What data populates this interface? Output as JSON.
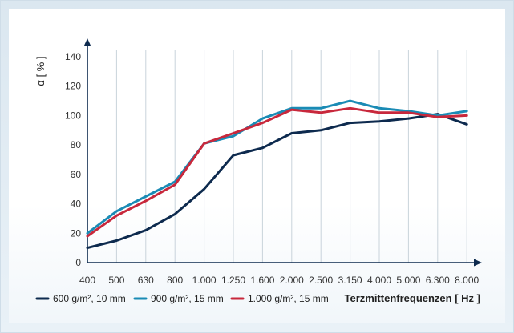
{
  "chart_data": {
    "type": "line",
    "ylabel": "α [ % ]",
    "xlabel": "Terzmittenfrequenzen [ Hz ]",
    "ylim": [
      0,
      140
    ],
    "yticks": [
      0,
      20,
      40,
      60,
      80,
      100,
      120,
      140
    ],
    "categories": [
      "400",
      "500",
      "630",
      "800",
      "1.000",
      "1.250",
      "1.600",
      "2.000",
      "2.500",
      "3.150",
      "4.000",
      "5.000",
      "6.300",
      "8.000"
    ],
    "grid": "vertical",
    "legend_position": "bottom",
    "series": [
      {
        "name": "600 g/m², 10 mm",
        "color": "#0d2a4e",
        "values": [
          10,
          15,
          22,
          33,
          50,
          73,
          78,
          88,
          90,
          95,
          96,
          98,
          101,
          94
        ]
      },
      {
        "name": "900 g/m², 15 mm",
        "color": "#1a8bb5",
        "values": [
          20,
          35,
          45,
          55,
          81,
          86,
          98,
          105,
          105,
          110,
          105,
          103,
          100,
          103
        ]
      },
      {
        "name": "1.000 g/m², 15 mm",
        "color": "#c8283c",
        "values": [
          18,
          32,
          42,
          53,
          81,
          88,
          95,
          104,
          102,
          105,
          102,
          102,
          99,
          100
        ]
      }
    ]
  }
}
